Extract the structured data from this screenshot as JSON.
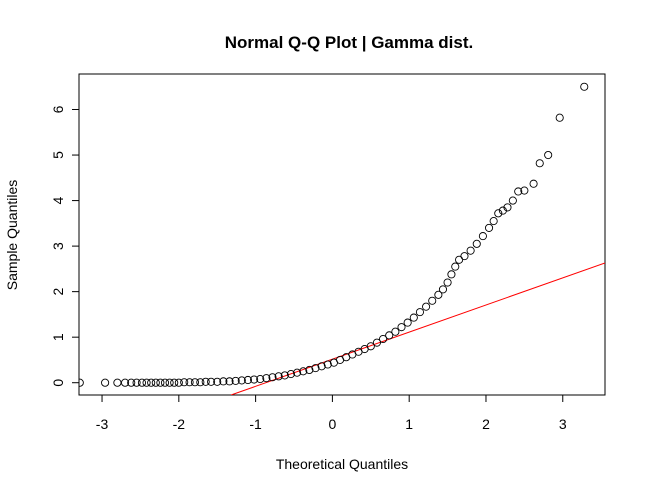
{
  "chart_data": {
    "type": "scatter",
    "title": "Normal Q-Q Plot | Gamma dist.",
    "xlabel": "Theoretical Quantiles",
    "ylabel": "Sample Quantiles",
    "xlim": [
      -3.3,
      3.55
    ],
    "ylim": [
      -0.27,
      6.78
    ],
    "xticks": [
      -3,
      -2,
      -1,
      0,
      1,
      2,
      3
    ],
    "yticks": [
      0,
      1,
      2,
      3,
      4,
      5,
      6
    ],
    "grid": false,
    "legend": "none",
    "point_color": "#000000",
    "line_color": "#ff0000",
    "reference_line": {
      "x1": -1.32,
      "y1": -0.27,
      "x2": 3.55,
      "y2": 2.63
    },
    "points": [
      [
        -3.29,
        0.0
      ],
      [
        -2.96,
        0.0
      ],
      [
        -2.8,
        0.0
      ],
      [
        -2.7,
        0.0
      ],
      [
        -2.62,
        0.0
      ],
      [
        -2.55,
        0.0
      ],
      [
        -2.48,
        0.0
      ],
      [
        -2.42,
        0.0
      ],
      [
        -2.36,
        0.0
      ],
      [
        -2.3,
        0.0
      ],
      [
        -2.24,
        0.0
      ],
      [
        -2.18,
        0.0
      ],
      [
        -2.12,
        0.0
      ],
      [
        -2.06,
        0.0
      ],
      [
        -2.0,
        0.0
      ],
      [
        -1.93,
        0.01
      ],
      [
        -1.86,
        0.01
      ],
      [
        -1.79,
        0.01
      ],
      [
        -1.72,
        0.01
      ],
      [
        -1.65,
        0.02
      ],
      [
        -1.58,
        0.02
      ],
      [
        -1.5,
        0.02
      ],
      [
        -1.42,
        0.03
      ],
      [
        -1.34,
        0.03
      ],
      [
        -1.26,
        0.04
      ],
      [
        -1.18,
        0.05
      ],
      [
        -1.1,
        0.06
      ],
      [
        -1.02,
        0.07
      ],
      [
        -0.94,
        0.08
      ],
      [
        -0.86,
        0.1
      ],
      [
        -0.78,
        0.12
      ],
      [
        -0.7,
        0.14
      ],
      [
        -0.62,
        0.16
      ],
      [
        -0.54,
        0.19
      ],
      [
        -0.46,
        0.22
      ],
      [
        -0.38,
        0.25
      ],
      [
        -0.3,
        0.28
      ],
      [
        -0.22,
        0.32
      ],
      [
        -0.14,
        0.36
      ],
      [
        -0.06,
        0.4
      ],
      [
        0.02,
        0.44
      ],
      [
        0.1,
        0.5
      ],
      [
        0.18,
        0.56
      ],
      [
        0.26,
        0.62
      ],
      [
        0.34,
        0.68
      ],
      [
        0.42,
        0.74
      ],
      [
        0.5,
        0.8
      ],
      [
        0.58,
        0.88
      ],
      [
        0.66,
        0.96
      ],
      [
        0.74,
        1.04
      ],
      [
        0.82,
        1.12
      ],
      [
        0.9,
        1.22
      ],
      [
        0.98,
        1.32
      ],
      [
        1.06,
        1.43
      ],
      [
        1.14,
        1.55
      ],
      [
        1.22,
        1.67
      ],
      [
        1.3,
        1.8
      ],
      [
        1.38,
        1.93
      ],
      [
        1.44,
        2.05
      ],
      [
        1.5,
        2.2
      ],
      [
        1.55,
        2.38
      ],
      [
        1.6,
        2.55
      ],
      [
        1.65,
        2.7
      ],
      [
        1.72,
        2.78
      ],
      [
        1.8,
        2.9
      ],
      [
        1.88,
        3.05
      ],
      [
        1.96,
        3.22
      ],
      [
        2.04,
        3.4
      ],
      [
        2.1,
        3.55
      ],
      [
        2.16,
        3.72
      ],
      [
        2.22,
        3.78
      ],
      [
        2.28,
        3.85
      ],
      [
        2.35,
        4.0
      ],
      [
        2.42,
        4.2
      ],
      [
        2.5,
        4.22
      ],
      [
        2.62,
        4.37
      ],
      [
        2.7,
        4.82
      ],
      [
        2.81,
        5.0
      ],
      [
        2.96,
        5.82
      ],
      [
        3.28,
        6.5
      ]
    ]
  }
}
